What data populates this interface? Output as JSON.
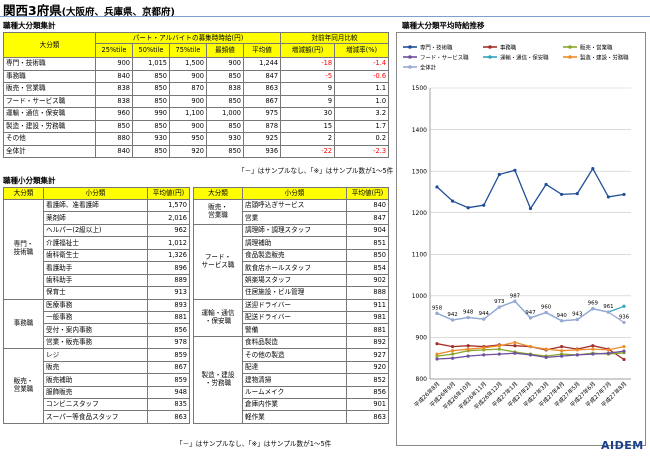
{
  "page": {
    "title": "関西3府県",
    "subtitle": "(大阪府、兵庫県、京都府)",
    "logo": "AIDEM"
  },
  "large_table": {
    "section_title": "職種大分類集計",
    "header_group_wage": "パート・アルバイトの募集時時給(円)",
    "header_group_yoy": "対前年同月比較",
    "header_category": "大分類",
    "columns": [
      "25%tile",
      "50%tile",
      "75%tile",
      "最頻値",
      "平均値",
      "増減額(円)",
      "増減率(%)"
    ],
    "rows": [
      {
        "name": "専門・技術職",
        "v": [
          "900",
          "1,015",
          "1,500",
          "900",
          "1,244",
          "-18",
          "-1.4"
        ]
      },
      {
        "name": "事務職",
        "v": [
          "840",
          "850",
          "900",
          "850",
          "847",
          "-5",
          "-0.6"
        ]
      },
      {
        "name": "販売・営業職",
        "v": [
          "838",
          "850",
          "870",
          "838",
          "863",
          "9",
          "1.1"
        ]
      },
      {
        "name": "フード・サービス職",
        "v": [
          "838",
          "850",
          "900",
          "850",
          "867",
          "9",
          "1.0"
        ]
      },
      {
        "name": "運輸・通信・保安職",
        "v": [
          "960",
          "990",
          "1,100",
          "1,000",
          "975",
          "30",
          "3.2"
        ]
      },
      {
        "name": "製造・建設・労務職",
        "v": [
          "850",
          "850",
          "900",
          "850",
          "878",
          "15",
          "1.7"
        ]
      },
      {
        "name": "その他",
        "v": [
          "880",
          "930",
          "950",
          "930",
          "925",
          "2",
          "0.2"
        ]
      },
      {
        "name": "全体計",
        "v": [
          "840",
          "850",
          "920",
          "850",
          "936",
          "-22",
          "-2.3"
        ]
      }
    ],
    "note": "「－」はサンプルなし、「※」はサンプル数が1～5件"
  },
  "small_table": {
    "section_title": "職種小分類集計",
    "headers": [
      "大分類",
      "小分類",
      "平均値(円)"
    ],
    "left_groups": [
      {
        "name": "専門・\n技術職",
        "items": [
          [
            "看護師、准看護師",
            "1,570"
          ],
          [
            "薬剤師",
            "2,016"
          ],
          [
            "ヘルパー(2級以上)",
            "962"
          ],
          [
            "介護福祉士",
            "1,012"
          ],
          [
            "歯科衛生士",
            "1,326"
          ],
          [
            "看護助手",
            "896"
          ],
          [
            "歯科助手",
            "889"
          ],
          [
            "保育士",
            "913"
          ]
        ]
      },
      {
        "name": "事務職",
        "items": [
          [
            "医療事務",
            "893"
          ],
          [
            "一般事務",
            "881"
          ],
          [
            "受付・案内事務",
            "856"
          ],
          [
            "営業・販売事務",
            "978"
          ]
        ]
      },
      {
        "name": "販売・\n営業職",
        "items": [
          [
            "レジ",
            "859"
          ],
          [
            "販売",
            "867"
          ],
          [
            "販売補助",
            "859"
          ],
          [
            "服飾販売",
            "948"
          ],
          [
            "コンビニスタッフ",
            "835"
          ],
          [
            "スーパー等食品スタッフ",
            "863"
          ]
        ]
      }
    ],
    "right_groups": [
      {
        "name": "販売・\n営業職",
        "items": [
          [
            "店頭呼込ぎサービス",
            "840"
          ],
          [
            "営業",
            "847"
          ]
        ]
      },
      {
        "name": "フード・\nサービス職",
        "items": [
          [
            "調理師・調理スタッフ",
            "904"
          ],
          [
            "調理補助",
            "851"
          ],
          [
            "食品製造販売",
            "850"
          ],
          [
            "飲食店ホールスタッフ",
            "854"
          ],
          [
            "娯楽場スタッフ",
            "902"
          ],
          [
            "住居施設・ビル管理",
            "888"
          ]
        ]
      },
      {
        "name": "運輸・通信\n・保安職",
        "items": [
          [
            "送迎ドライバー",
            "911"
          ],
          [
            "配送ドライバー",
            "981"
          ],
          [
            "警備",
            "881"
          ]
        ]
      },
      {
        "name": "製造・建設\n・労務職",
        "items": [
          [
            "食料品製造",
            "892"
          ],
          [
            "その他の製造",
            "927"
          ],
          [
            "配達",
            "920"
          ],
          [
            "建物清掃",
            "852"
          ],
          [
            "ルームメイク",
            "856"
          ],
          [
            "倉庫内作業",
            "901"
          ],
          [
            "軽作業",
            "863"
          ]
        ]
      }
    ],
    "note": "「－」はサンプルなし、「※」はサンプル数が1～5件"
  },
  "chart_data": {
    "type": "line",
    "title": "職種大分類平均時給推移",
    "x": [
      "平成26年8月",
      "平成26年9月",
      "平成26年10月",
      "平成26年11月",
      "平成26年12月",
      "平成27年1月",
      "平成27年2月",
      "平成27年3月",
      "平成27年4月",
      "平成27年5月",
      "平成27年6月",
      "平成27年7月",
      "平成27年8月"
    ],
    "ylim": [
      800,
      1500
    ],
    "yticks": [
      800,
      900,
      1000,
      1100,
      1200,
      1300,
      1400,
      1500
    ],
    "grid": true,
    "legend_position": "top",
    "series": [
      {
        "name": "専門・技術職",
        "color": "#1f4e96",
        "values": [
          1262,
          1228,
          1212,
          1218,
          1292,
          1302,
          1210,
          1268,
          1244,
          1246,
          1306,
          1238,
          1244
        ]
      },
      {
        "name": "事務職",
        "color": "#a03028",
        "values": [
          885,
          878,
          880,
          878,
          882,
          880,
          878,
          870,
          878,
          872,
          880,
          872,
          847
        ]
      },
      {
        "name": "販売・営業職",
        "color": "#8aa62c",
        "values": [
          855,
          860,
          868,
          870,
          872,
          865,
          860,
          855,
          860,
          858,
          862,
          860,
          863
        ]
      },
      {
        "name": "フード・サービス職",
        "color": "#6f4f9e",
        "values": [
          848,
          850,
          855,
          858,
          860,
          862,
          858,
          852,
          855,
          858,
          860,
          862,
          867
        ]
      },
      {
        "name": "運輸・通信・保安職",
        "color": "#2fa4bc",
        "values": [
          958,
          942,
          948,
          944,
          973,
          987,
          947,
          960,
          940,
          943,
          969,
          961,
          975
        ]
      },
      {
        "name": "製造・建設・労務職",
        "color": "#f08c28",
        "values": [
          860,
          868,
          872,
          875,
          880,
          888,
          878,
          872,
          868,
          870,
          872,
          870,
          878
        ]
      },
      {
        "name": "全体計",
        "color": "#9aa8d6",
        "values": [
          958,
          942,
          948,
          944,
          973,
          987,
          947,
          960,
          940,
          943,
          969,
          961,
          936
        ]
      }
    ],
    "data_labels": {
      "series": "全体計",
      "values": [
        "958",
        "942",
        "948",
        "944",
        "973",
        "987",
        "947",
        "960",
        "940",
        "943",
        "969",
        "961",
        "936"
      ]
    }
  }
}
